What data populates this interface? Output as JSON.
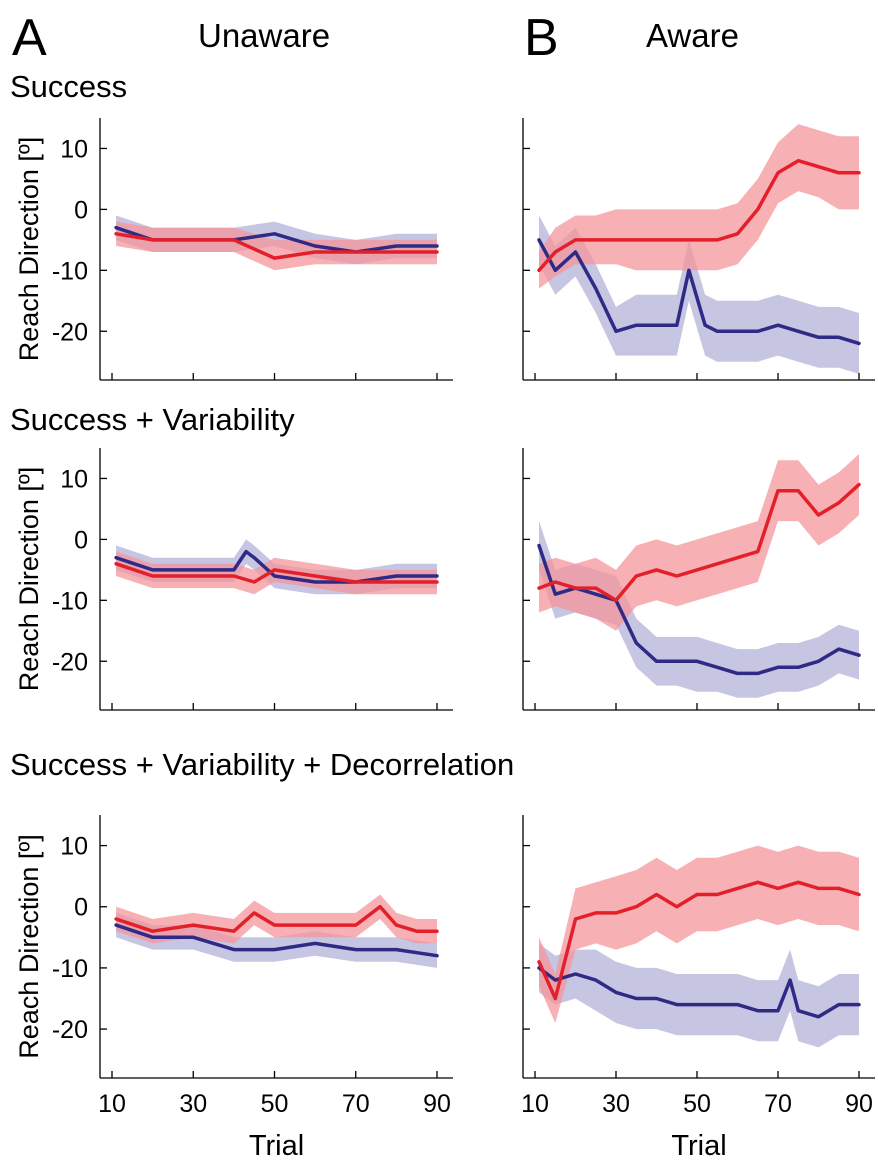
{
  "figure": {
    "panel_letters": [
      "A",
      "B"
    ],
    "column_titles": [
      "Unaware",
      "Aware"
    ],
    "row_titles": [
      "Success",
      "Success + Variability",
      "Success + Variability + Decorrelation"
    ],
    "colors": {
      "red_line": "#e3202a",
      "red_band": "#f4959b",
      "blue_line": "#2e2a86",
      "blue_band": "#b3b1d8"
    }
  },
  "chart_data": [
    {
      "type": "line",
      "panel": "A",
      "condition": "Success",
      "awareness": "Unaware",
      "ylabel": "Reach Direction [º]",
      "xlabel": "",
      "xlim": [
        10,
        90
      ],
      "ylim": [
        -28,
        15
      ],
      "xticks": [
        10,
        30,
        50,
        70,
        90
      ],
      "yticks": [
        10,
        0,
        -10,
        -20
      ],
      "series": [
        {
          "color": "blue",
          "x": [
            11,
            20,
            30,
            40,
            50,
            60,
            70,
            80,
            90
          ],
          "y": [
            -3,
            -5,
            -5,
            -5,
            -4,
            -6,
            -7,
            -6,
            -6
          ],
          "lower": [
            -5,
            -7,
            -7,
            -7,
            -6,
            -8,
            -9,
            -8,
            -8
          ],
          "upper": [
            -1,
            -3,
            -3,
            -3,
            -2,
            -4,
            -5,
            -4,
            -4
          ]
        },
        {
          "color": "red",
          "x": [
            11,
            20,
            30,
            40,
            50,
            60,
            70,
            80,
            90
          ],
          "y": [
            -4,
            -5,
            -5,
            -5,
            -8,
            -7,
            -7,
            -7,
            -7
          ],
          "lower": [
            -6,
            -7,
            -7,
            -7,
            -10,
            -9,
            -9,
            -9,
            -9
          ],
          "upper": [
            -2,
            -3,
            -3,
            -3,
            -5,
            -5,
            -5,
            -5,
            -5
          ]
        }
      ]
    },
    {
      "type": "line",
      "panel": "B",
      "condition": "Success",
      "awareness": "Aware",
      "ylabel": "",
      "xlabel": "",
      "xlim": [
        10,
        90
      ],
      "ylim": [
        -28,
        15
      ],
      "xticks": [
        10,
        30,
        50,
        70,
        90
      ],
      "yticks": [
        10,
        0,
        -10,
        -20
      ],
      "series": [
        {
          "color": "blue",
          "x": [
            11,
            15,
            20,
            25,
            30,
            35,
            40,
            45,
            48,
            52,
            55,
            60,
            65,
            70,
            75,
            80,
            85,
            90
          ],
          "y": [
            -5,
            -10,
            -7,
            -13,
            -20,
            -19,
            -19,
            -19,
            -10,
            -19,
            -20,
            -20,
            -20,
            -19,
            -20,
            -21,
            -21,
            -22
          ],
          "lower": [
            -9,
            -14,
            -11,
            -17,
            -24,
            -24,
            -24,
            -24,
            -15,
            -24,
            -25,
            -25,
            -25,
            -24,
            -25,
            -26,
            -26,
            -27
          ],
          "upper": [
            -1,
            -6,
            -3,
            -9,
            -16,
            -14,
            -14,
            -14,
            -5,
            -14,
            -15,
            -15,
            -15,
            -14,
            -15,
            -16,
            -16,
            -17
          ]
        },
        {
          "color": "red",
          "x": [
            11,
            15,
            20,
            25,
            30,
            35,
            40,
            45,
            50,
            55,
            60,
            65,
            70,
            75,
            80,
            85,
            90
          ],
          "y": [
            -10,
            -7,
            -5,
            -5,
            -5,
            -5,
            -5,
            -5,
            -5,
            -5,
            -4,
            0,
            6,
            8,
            7,
            6,
            6
          ],
          "lower": [
            -13,
            -11,
            -9,
            -9,
            -9,
            -10,
            -10,
            -10,
            -10,
            -10,
            -9,
            -5,
            1,
            3,
            2,
            0,
            0
          ],
          "upper": [
            -7,
            -3,
            -1,
            -1,
            0,
            0,
            0,
            0,
            0,
            0,
            1,
            5,
            11,
            14,
            13,
            12,
            12
          ]
        }
      ]
    },
    {
      "type": "line",
      "panel": "A",
      "condition": "Success + Variability",
      "awareness": "Unaware",
      "ylabel": "Reach Direction [º]",
      "xlabel": "",
      "xlim": [
        10,
        90
      ],
      "ylim": [
        -28,
        15
      ],
      "xticks": [
        10,
        30,
        50,
        70,
        90
      ],
      "yticks": [
        10,
        0,
        -10,
        -20
      ],
      "series": [
        {
          "color": "blue",
          "x": [
            11,
            20,
            30,
            40,
            43,
            45,
            50,
            60,
            70,
            80,
            90
          ],
          "y": [
            -3,
            -5,
            -5,
            -5,
            -2,
            -3,
            -6,
            -7,
            -7,
            -6,
            -6
          ],
          "lower": [
            -5,
            -7,
            -7,
            -7,
            -4,
            -5,
            -8,
            -9,
            -9,
            -8,
            -8
          ],
          "upper": [
            -1,
            -3,
            -3,
            -3,
            0,
            -1,
            -4,
            -5,
            -5,
            -4,
            -4
          ]
        },
        {
          "color": "red",
          "x": [
            11,
            20,
            30,
            40,
            45,
            50,
            60,
            70,
            80,
            90
          ],
          "y": [
            -4,
            -6,
            -6,
            -6,
            -7,
            -5,
            -6,
            -7,
            -7,
            -7
          ],
          "lower": [
            -6,
            -8,
            -8,
            -8,
            -9,
            -7,
            -8,
            -9,
            -9,
            -9
          ],
          "upper": [
            -2,
            -4,
            -4,
            -4,
            -5,
            -3,
            -4,
            -5,
            -5,
            -5
          ]
        }
      ]
    },
    {
      "type": "line",
      "panel": "B",
      "condition": "Success + Variability",
      "awareness": "Aware",
      "ylabel": "",
      "xlabel": "",
      "xlim": [
        10,
        90
      ],
      "ylim": [
        -28,
        15
      ],
      "xticks": [
        10,
        30,
        50,
        70,
        90
      ],
      "yticks": [
        10,
        0,
        -10,
        -20
      ],
      "series": [
        {
          "color": "blue",
          "x": [
            11,
            15,
            20,
            25,
            30,
            35,
            40,
            45,
            50,
            55,
            60,
            65,
            70,
            75,
            80,
            85,
            90
          ],
          "y": [
            -1,
            -9,
            -8,
            -9,
            -10,
            -17,
            -20,
            -20,
            -20,
            -21,
            -22,
            -22,
            -21,
            -21,
            -20,
            -18,
            -19
          ],
          "lower": [
            -5,
            -13,
            -12,
            -13,
            -14,
            -21,
            -24,
            -24,
            -25,
            -25,
            -26,
            -26,
            -25,
            -25,
            -24,
            -22,
            -23
          ],
          "upper": [
            3,
            -5,
            -4,
            -5,
            -6,
            -13,
            -16,
            -16,
            -16,
            -17,
            -18,
            -18,
            -17,
            -17,
            -16,
            -14,
            -15
          ]
        },
        {
          "color": "red",
          "x": [
            11,
            15,
            20,
            25,
            30,
            35,
            40,
            45,
            50,
            55,
            60,
            65,
            70,
            75,
            80,
            85,
            90
          ],
          "y": [
            -8,
            -7,
            -8,
            -8,
            -10,
            -6,
            -5,
            -6,
            -5,
            -4,
            -3,
            -2,
            8,
            8,
            4,
            6,
            9
          ],
          "lower": [
            -12,
            -11,
            -12,
            -13,
            -15,
            -11,
            -10,
            -11,
            -10,
            -9,
            -8,
            -7,
            3,
            3,
            -1,
            1,
            4
          ],
          "upper": [
            -4,
            -3,
            -4,
            -3,
            -5,
            -1,
            0,
            -1,
            0,
            1,
            2,
            3,
            13,
            13,
            9,
            11,
            14
          ]
        }
      ]
    },
    {
      "type": "line",
      "panel": "A",
      "condition": "Success + Variability + Decorrelation",
      "awareness": "Unaware",
      "ylabel": "Reach Direction [º]",
      "xlabel": "Trial",
      "xlim": [
        10,
        90
      ],
      "ylim": [
        -28,
        15
      ],
      "xticks": [
        10,
        30,
        50,
        70,
        90
      ],
      "yticks": [
        10,
        0,
        -10,
        -20
      ],
      "series": [
        {
          "color": "blue",
          "x": [
            11,
            20,
            30,
            40,
            50,
            60,
            70,
            80,
            90
          ],
          "y": [
            -3,
            -5,
            -5,
            -7,
            -7,
            -6,
            -7,
            -7,
            -8
          ],
          "lower": [
            -5,
            -7,
            -7,
            -9,
            -9,
            -8,
            -9,
            -9,
            -10
          ],
          "upper": [
            -1,
            -3,
            -3,
            -5,
            -5,
            -4,
            -5,
            -5,
            -6
          ]
        },
        {
          "color": "red",
          "x": [
            11,
            20,
            30,
            40,
            45,
            50,
            60,
            70,
            76,
            80,
            85,
            90
          ],
          "y": [
            -2,
            -4,
            -3,
            -4,
            -1,
            -3,
            -3,
            -3,
            0,
            -3,
            -4,
            -4
          ],
          "lower": [
            -4,
            -6,
            -5,
            -6,
            -3,
            -5,
            -5,
            -5,
            -2,
            -5,
            -6,
            -6
          ],
          "upper": [
            0,
            -2,
            -1,
            -2,
            1,
            -1,
            -1,
            -1,
            2,
            -1,
            -2,
            -2
          ]
        }
      ]
    },
    {
      "type": "line",
      "panel": "B",
      "condition": "Success + Variability + Decorrelation",
      "awareness": "Aware",
      "ylabel": "",
      "xlabel": "Trial",
      "xlim": [
        10,
        90
      ],
      "ylim": [
        -28,
        15
      ],
      "xticks": [
        10,
        30,
        50,
        70,
        90
      ],
      "yticks": [
        10,
        0,
        -10,
        -20
      ],
      "series": [
        {
          "color": "blue",
          "x": [
            11,
            15,
            20,
            25,
            30,
            35,
            40,
            45,
            50,
            55,
            60,
            65,
            70,
            73,
            75,
            80,
            85,
            90
          ],
          "y": [
            -10,
            -12,
            -11,
            -12,
            -14,
            -15,
            -15,
            -16,
            -16,
            -16,
            -16,
            -17,
            -17,
            -12,
            -17,
            -18,
            -16,
            -16
          ],
          "lower": [
            -14,
            -16,
            -15,
            -17,
            -19,
            -20,
            -20,
            -21,
            -21,
            -21,
            -21,
            -22,
            -22,
            -17,
            -22,
            -23,
            -21,
            -21
          ],
          "upper": [
            -6,
            -8,
            -7,
            -7,
            -9,
            -10,
            -10,
            -11,
            -11,
            -11,
            -11,
            -12,
            -12,
            -7,
            -12,
            -13,
            -11,
            -11
          ]
        },
        {
          "color": "red",
          "x": [
            11,
            15,
            20,
            25,
            30,
            35,
            40,
            45,
            50,
            55,
            60,
            65,
            70,
            75,
            80,
            85,
            90
          ],
          "y": [
            -9,
            -15,
            -2,
            -1,
            -1,
            0,
            2,
            0,
            2,
            2,
            3,
            4,
            3,
            4,
            3,
            3,
            2
          ],
          "lower": [
            -13,
            -19,
            -7,
            -6,
            -7,
            -6,
            -4,
            -6,
            -4,
            -4,
            -3,
            -2,
            -3,
            -2,
            -3,
            -3,
            -4
          ],
          "upper": [
            -5,
            -11,
            3,
            4,
            5,
            6,
            8,
            6,
            8,
            8,
            9,
            10,
            9,
            10,
            9,
            9,
            8
          ]
        }
      ]
    }
  ]
}
